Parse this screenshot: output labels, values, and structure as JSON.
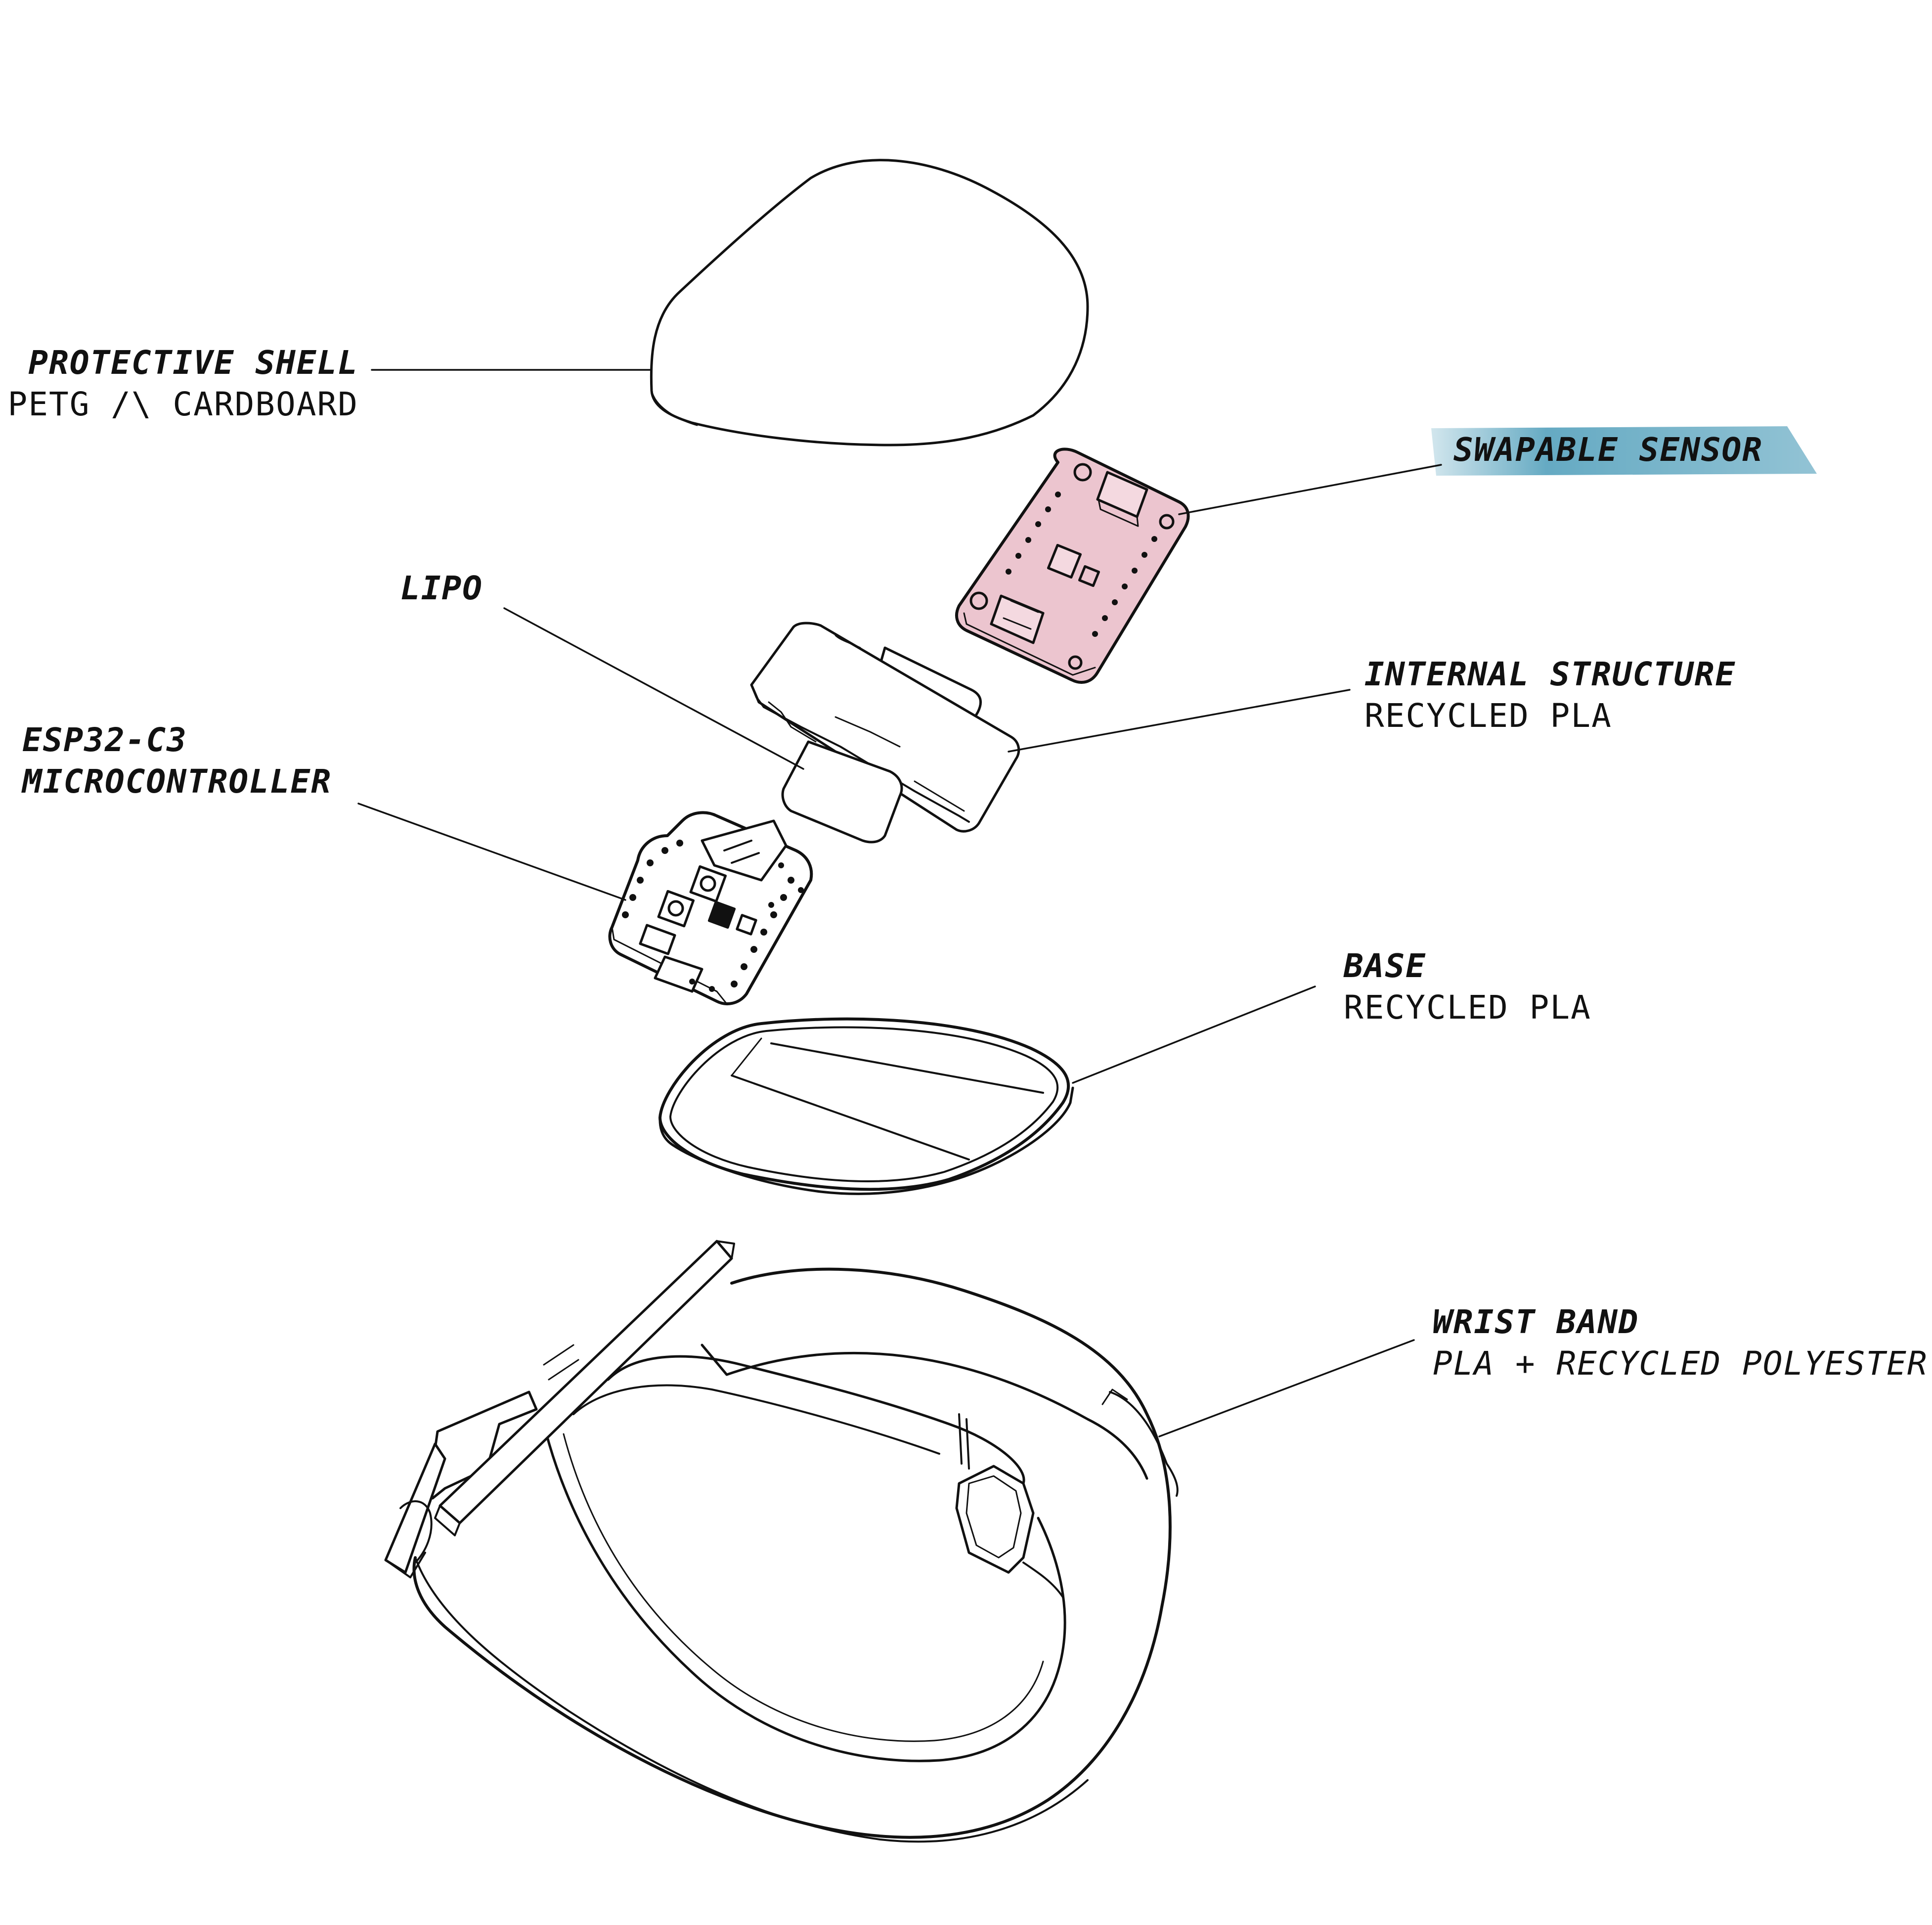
{
  "labels": {
    "protective_shell": {
      "title": "PROTECTIVE SHELL",
      "material": "PETG /\\ CARDBOARD"
    },
    "swapable_sensor": {
      "title": "SWAPABLE SENSOR"
    },
    "lipo": {
      "title": "LIPO"
    },
    "internal_structure": {
      "title": "INTERNAL STRUCTURE",
      "material": "RECYCLED PLA"
    },
    "esp32": {
      "title_line1": "ESP32-C3",
      "title_line2": "MICROCONTROLLER"
    },
    "base": {
      "title": "BASE",
      "material": "RECYCLED PLA"
    },
    "wrist_band": {
      "title": "WRIST BAND",
      "material": "PLA + RECYCLED POLYESTER"
    }
  },
  "colors": {
    "line": "#111111",
    "sensor_fill": "#ecc5cf",
    "sensor_highlight": "#4a9bb8"
  }
}
